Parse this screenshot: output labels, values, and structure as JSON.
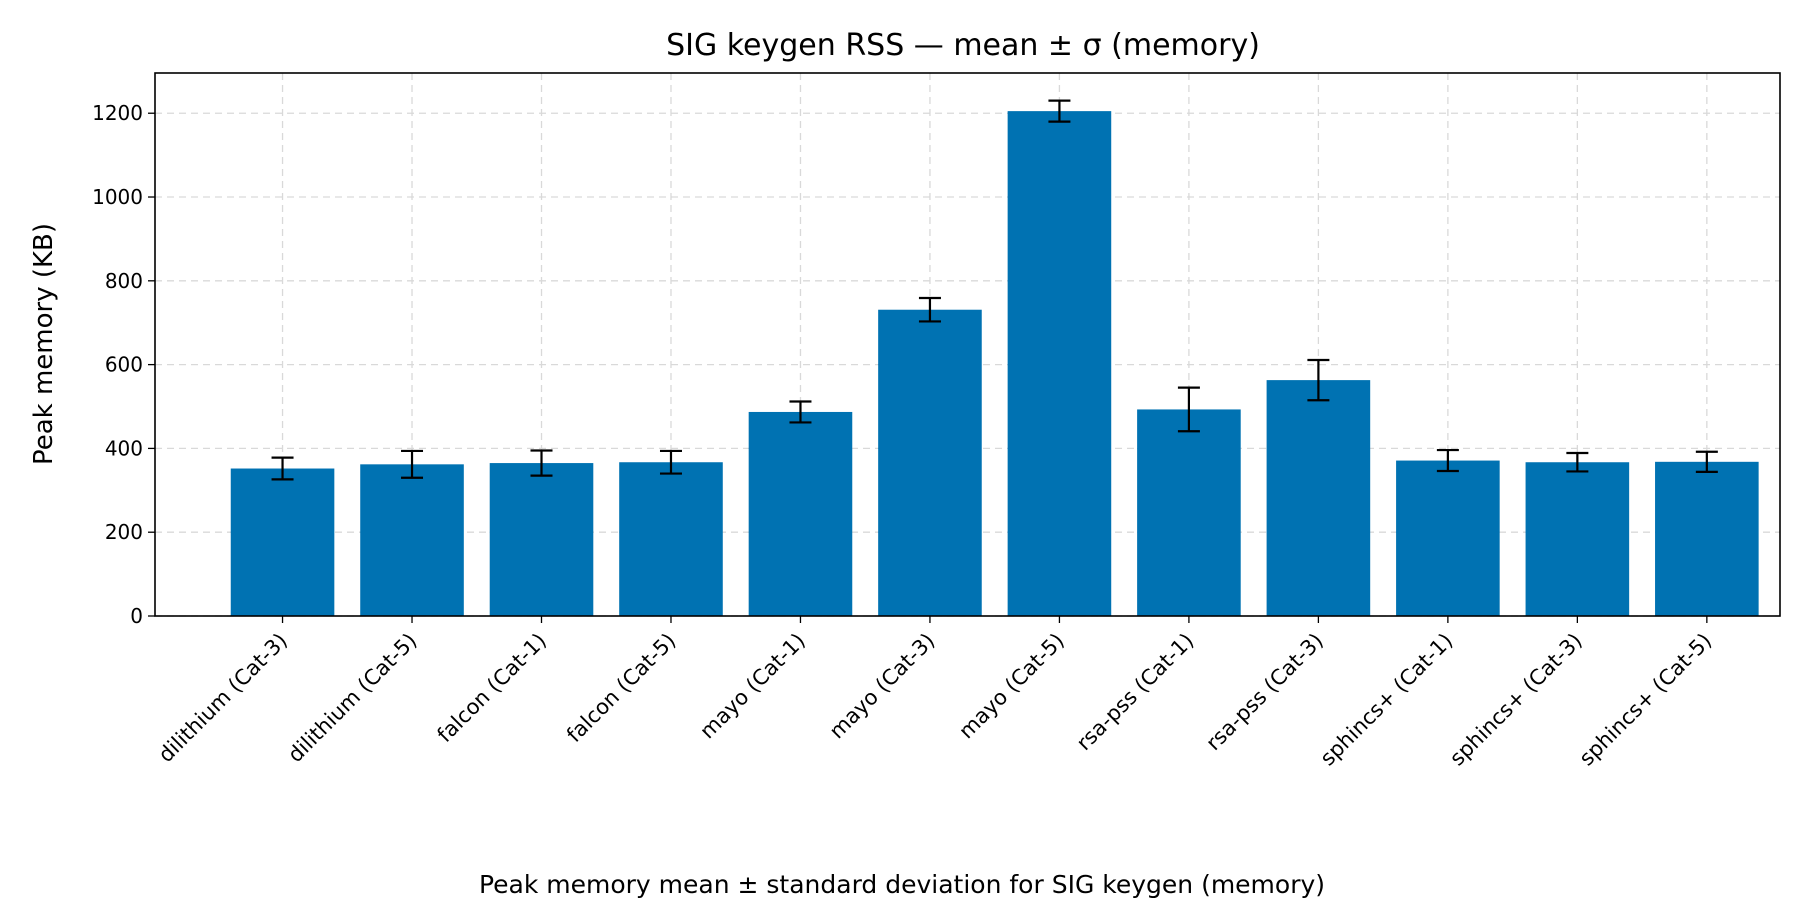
{
  "chart_data": {
    "type": "bar",
    "title": "SIG keygen RSS — mean ± σ (memory)",
    "xlabel": "",
    "ylabel": "Peak memory (KB)",
    "caption": "Peak memory mean ± standard deviation for SIG keygen (memory)",
    "categories": [
      "dilithium (Cat-3)",
      "dilithium (Cat-5)",
      "falcon (Cat-1)",
      "falcon (Cat-5)",
      "mayo (Cat-1)",
      "mayo (Cat-3)",
      "mayo (Cat-5)",
      "rsa-pss (Cat-1)",
      "rsa-pss (Cat-3)",
      "sphincs+ (Cat-1)",
      "sphincs+ (Cat-3)",
      "sphincs+ (Cat-5)"
    ],
    "values": [
      352,
      362,
      365,
      367,
      487,
      731,
      1205,
      493,
      563,
      371,
      367,
      368
    ],
    "errors": [
      26,
      32,
      30,
      27,
      25,
      28,
      25,
      52,
      48,
      25,
      22,
      24
    ],
    "yticks": [
      0,
      200,
      400,
      600,
      800,
      1000,
      1200
    ],
    "ylim": [
      0,
      1296
    ],
    "grid": true,
    "bar_color": "#0072B2"
  }
}
